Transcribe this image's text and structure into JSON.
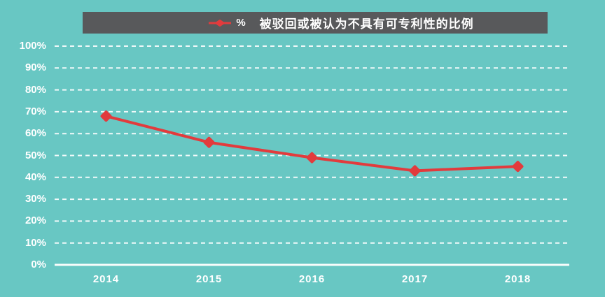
{
  "header": {
    "legend_label": "%",
    "title": "被驳回或被认为不具有可专利性的比例"
  },
  "colors": {
    "background": "#68C7C3",
    "header_bg": "#58595B",
    "series": "#E23B3D",
    "grid": "#FFFFFF",
    "text": "#FFFFFF"
  },
  "chart_data": {
    "type": "line",
    "title": "被驳回或被认为不具有可专利性的比例",
    "legend": [
      "%"
    ],
    "legend_position": "top",
    "categories": [
      "2014",
      "2015",
      "2016",
      "2017",
      "2018"
    ],
    "series": [
      {
        "name": "%",
        "values": [
          68,
          56,
          49,
          43,
          45
        ],
        "color": "#E23B3D",
        "marker": "diamond"
      }
    ],
    "xlabel": "",
    "ylabel": "",
    "ylim": [
      0,
      100
    ],
    "y_ticks": [
      "100%",
      "90%",
      "80%",
      "70%",
      "60%",
      "50%",
      "40%",
      "30%",
      "20%",
      "10%",
      "0%"
    ],
    "grid": "dashed-horizontal"
  }
}
